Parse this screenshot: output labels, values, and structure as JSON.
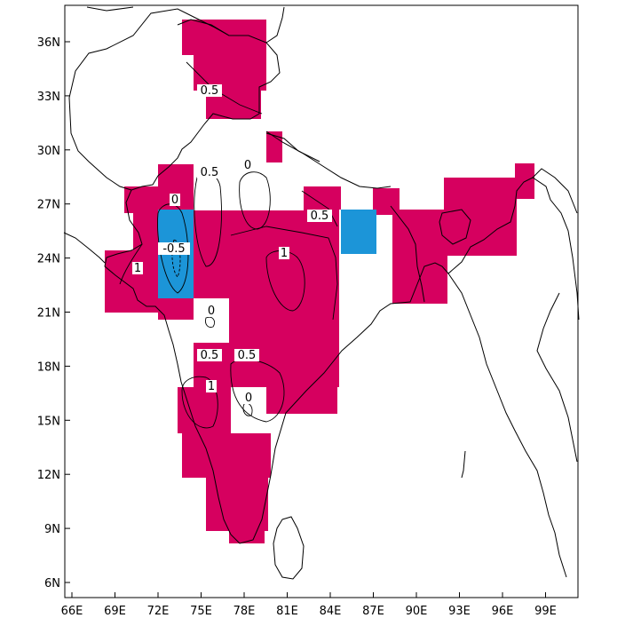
{
  "map": {
    "x_ticks": [
      "66E",
      "69E",
      "72E",
      "75E",
      "78E",
      "81E",
      "84E",
      "87E",
      "90E",
      "93E",
      "96E",
      "99E"
    ],
    "y_ticks": [
      "36N",
      "33N",
      "30N",
      "27N",
      "24N",
      "21N",
      "18N",
      "15N",
      "12N",
      "9N",
      "6N"
    ],
    "colors": {
      "positive": "#d6005f",
      "negative": "#1c95d8",
      "land_outline": "#000000",
      "contour": "#000000"
    },
    "contour_labels": [
      "0.5",
      "0.5",
      "0",
      "0",
      "0.5",
      "1",
      "-0.5",
      "1",
      "0",
      "0.5",
      "0.5",
      "1",
      "0"
    ]
  }
}
